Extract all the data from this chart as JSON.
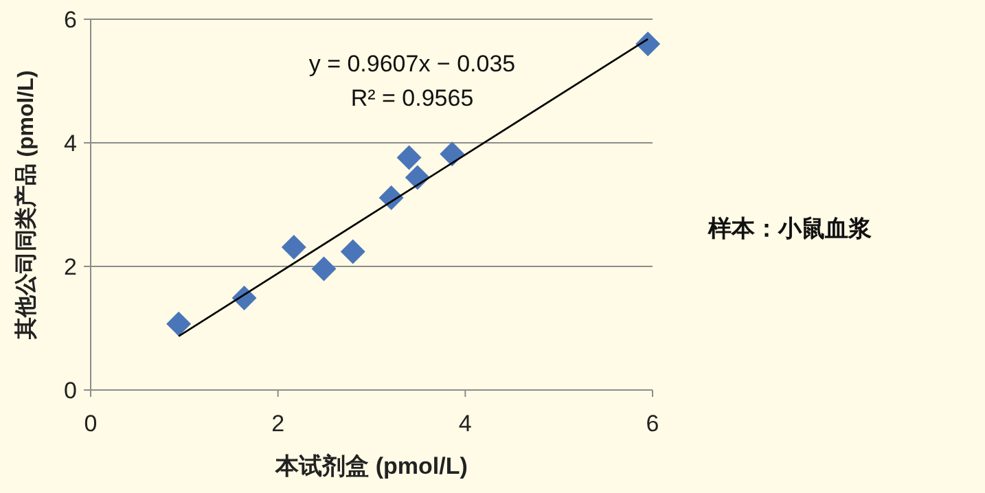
{
  "chart_data": {
    "type": "scatter",
    "xlabel": "本试剂盒 (pmol/L)",
    "ylabel": "其他公司同类产品 (pmol/L)",
    "annotations": [
      "y = 0.9607x − 0.035",
      "R² = 0.9565",
      "样本：小鼠血浆"
    ],
    "xlim": [
      0,
      6
    ],
    "ylim": [
      0,
      6
    ],
    "xticks": [
      0,
      2,
      4,
      6
    ],
    "yticks": [
      0,
      2,
      4,
      6
    ],
    "grid": "y",
    "series": [
      {
        "type": "scatter",
        "color": "#4a76b9",
        "marker": "diamond",
        "x": [
          0.94,
          1.64,
          2.17,
          2.49,
          2.8,
          3.21,
          3.4,
          3.49,
          3.86,
          5.95
        ],
        "values": [
          1.07,
          1.49,
          2.31,
          1.96,
          2.24,
          3.11,
          3.76,
          3.44,
          3.82,
          5.6
        ]
      },
      {
        "type": "line",
        "color": "#000000",
        "marker": "none",
        "x": [
          0.94,
          5.95
        ],
        "values": [
          0.87,
          5.68
        ]
      }
    ]
  }
}
